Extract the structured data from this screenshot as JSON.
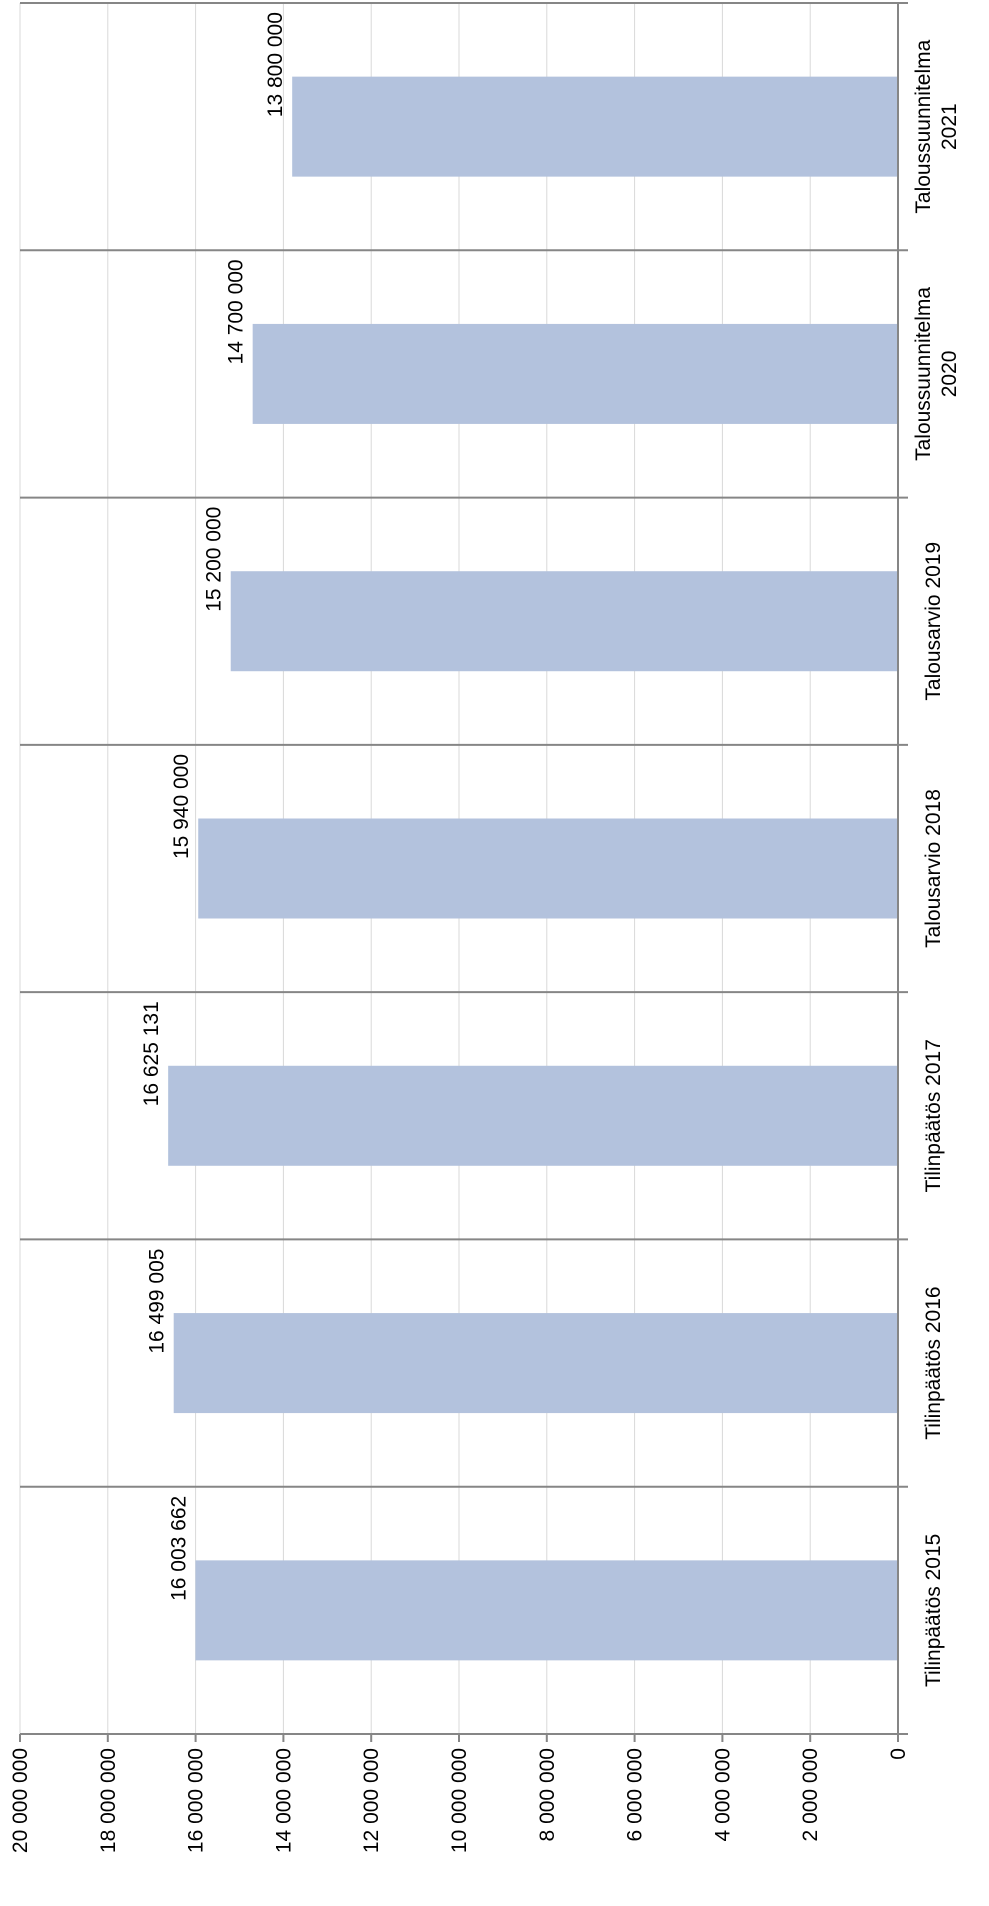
{
  "chart_data": {
    "type": "bar",
    "orientation": "rotated-90-clockwise",
    "categories": [
      [
        "Tilinpäätös 2015"
      ],
      [
        "Tilinpäätös 2016"
      ],
      [
        "Tilinpäätös 2017"
      ],
      [
        "Talousarvio 2018"
      ],
      [
        "Talousarvio 2019"
      ],
      [
        "Taloussuunnitelma",
        "2020"
      ],
      [
        "Taloussuunnitelma",
        "2021"
      ]
    ],
    "values": [
      16003662,
      16499005,
      16625131,
      15940000,
      15200000,
      14700000,
      13800000
    ],
    "data_labels": [
      "16 003 662",
      "16 499 005",
      "16 625 131",
      "15 940 000",
      "15 200 000",
      "14 700 000",
      "13 800 000"
    ],
    "ylim": [
      0,
      20000000
    ],
    "yticks": [
      0,
      2000000,
      4000000,
      6000000,
      8000000,
      10000000,
      12000000,
      14000000,
      16000000,
      18000000,
      20000000
    ],
    "ytick_labels": [
      "0",
      "2 000 000",
      "4 000 000",
      "6 000 000",
      "8 000 000",
      "10 000 000",
      "12 000 000",
      "14 000 000",
      "16 000 000",
      "18 000 000",
      "20 000 000"
    ],
    "title": "",
    "xlabel": "",
    "ylabel": "",
    "grid": true,
    "legend": "none",
    "colors": {
      "bar": "#b3c2dd",
      "grid": "#d9d9d9",
      "axis": "#868686"
    }
  }
}
